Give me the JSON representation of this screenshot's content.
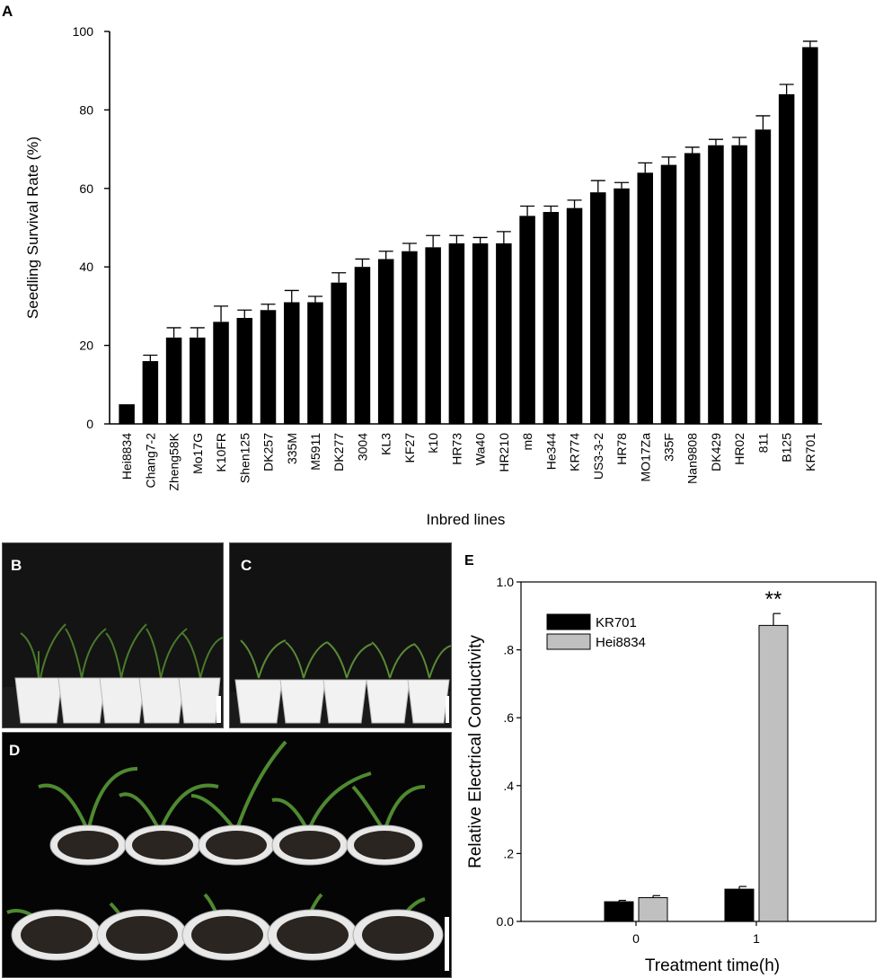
{
  "panels": {
    "a": {
      "label": "A"
    },
    "b": {
      "label": "B"
    },
    "c": {
      "label": "C"
    },
    "d": {
      "label": "D"
    },
    "e": {
      "label": "E"
    }
  },
  "chart_data": [
    {
      "id": "A",
      "type": "bar",
      "title": "",
      "xlabel": "Inbred lines",
      "ylabel": "Seedling Survival Rate (%)",
      "ylim": [
        0,
        100
      ],
      "yticks": [
        "0",
        "20",
        "40",
        "60",
        "80",
        "100"
      ],
      "categories": [
        "Hei8834",
        "Chang7-2",
        "Zheng58K",
        "Mo17G",
        "K10FR",
        "Shen125",
        "DK257",
        "335M",
        "M5911",
        "DK277",
        "3004",
        "KL3",
        "KF27",
        "k10",
        "HR73",
        "Wa40",
        "HR210",
        "m8",
        "He344",
        "KR774",
        "US3-3-2",
        "HR78",
        "MO17Za",
        "335F",
        "Nan9808",
        "DK429",
        "HR02",
        "811",
        "B125",
        "KR701"
      ],
      "values": [
        5,
        16,
        22,
        22,
        26,
        27,
        29,
        31,
        31,
        36,
        40,
        42,
        44,
        45,
        46,
        46,
        46,
        53,
        54,
        55,
        59,
        60,
        64,
        66,
        69,
        71,
        71,
        75,
        84,
        96
      ],
      "errors": [
        0,
        1.5,
        2.5,
        2.5,
        4,
        2,
        1.5,
        3,
        1.5,
        2.5,
        2,
        2,
        2,
        3,
        2,
        1.5,
        3,
        2.5,
        1.5,
        2,
        3,
        1.5,
        2.5,
        2,
        1.5,
        1.5,
        2,
        3.5,
        2.5,
        1.5
      ],
      "color": "#000000"
    },
    {
      "id": "E",
      "type": "bar",
      "title": "",
      "xlabel": "Treatment time(h)",
      "ylabel": "Relative Electrical Conductivity",
      "ylim": [
        0,
        1.0
      ],
      "yticks": [
        "0.0",
        ".2",
        ".4",
        ".6",
        ".8",
        "1.0"
      ],
      "categories": [
        "0",
        "1"
      ],
      "series": [
        {
          "name": "KR701",
          "color": "#000000",
          "values": [
            0.058,
            0.095
          ],
          "errors": [
            0.004,
            0.008
          ]
        },
        {
          "name": "Hei8834",
          "color": "#c0c0c0",
          "values": [
            0.07,
            0.872
          ],
          "errors": [
            0.006,
            0.035
          ]
        }
      ],
      "annotation": "**"
    }
  ]
}
